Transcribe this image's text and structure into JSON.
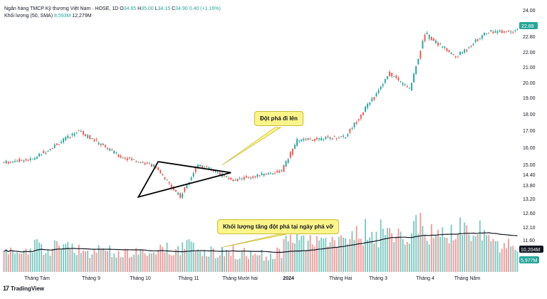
{
  "header": {
    "symbol_title": "Ngân hàng TMCP Kỹ thương Việt Nam · HOSE, 1D",
    "ohlc": {
      "o_label": "O",
      "o_value": "34.65",
      "h_label": "H",
      "h_value": "35.00",
      "l_label": "L",
      "l_value": "34.15",
      "c_label": "C",
      "c_value": "34.90",
      "change": "0.40 (+1.16%)"
    },
    "volume_label": "Khối lượng (50, SMA)",
    "volume_value_a": "8,593M",
    "volume_value_b": "12,279M"
  },
  "annotations": {
    "breakout": "Đột phá đi lên",
    "volume_spike": "Khối lượng tăng đột phá tại ngày phá vỡ"
  },
  "price_axis": {
    "ticks": [
      "24.00",
      "22.80",
      "22.00",
      "21.00",
      "20.00",
      "19.00",
      "18.00",
      "17.00",
      "16.00",
      "15.00",
      "14.40",
      "13.80",
      "13.20",
      "12.60",
      "12.10",
      "11.60"
    ],
    "current_price_label": "22.89",
    "volume_ma_label": "10,204M",
    "volume_label": "5,977M"
  },
  "time_axis": {
    "ticks": [
      "Tháng Tám",
      "Tháng 9",
      "Tháng 10",
      "Tháng 11",
      "Tháng Mười hai",
      "2024",
      "Tháng Hai",
      "Tháng 3",
      "Tháng 4",
      "Tháng Năm"
    ]
  },
  "branding": {
    "logo_text": "TradingView",
    "logo_mark": "17"
  },
  "colors": {
    "up": "#26a69a",
    "down": "#ef5350",
    "vol_up": "#7fcbc2",
    "vol_down": "#f29b9b",
    "ma": "#131722",
    "current_price": "#26a69a",
    "callout_bg": "#fdf58a"
  },
  "chart_data": {
    "type": "candlestick",
    "price_range": [
      12.1,
      24.2
    ],
    "volume_range": [
      0,
      26
    ],
    "volume_scale_labels": {
      "ma": 10.204,
      "last": 5.977
    },
    "segments": [
      {
        "start": 15.05,
        "end": 15.25,
        "n": 14,
        "vol": [
          6,
          9
        ]
      },
      {
        "start": 15.25,
        "end": 16.95,
        "n": 21,
        "vol": [
          6,
          12
        ]
      },
      {
        "start": 16.95,
        "end": 15.45,
        "n": 18,
        "vol": [
          5,
          10
        ]
      },
      {
        "start": 15.45,
        "end": 14.85,
        "n": 16,
        "vol": [
          5,
          9
        ]
      },
      {
        "start": 14.85,
        "end": 13.0,
        "n": 12,
        "vol": [
          6,
          11
        ]
      },
      {
        "start": 13.0,
        "end": 14.95,
        "n": 8,
        "vol": [
          7,
          12
        ]
      },
      {
        "start": 14.95,
        "end": 14.0,
        "n": 16,
        "vol": [
          5,
          10
        ]
      },
      {
        "start": 14.0,
        "end": 14.55,
        "n": 22,
        "vol": [
          4,
          9
        ]
      },
      {
        "start": 14.55,
        "end": 16.35,
        "n": 7,
        "vol": [
          10,
          16
        ]
      },
      {
        "start": 16.35,
        "end": 16.6,
        "n": 22,
        "vol": [
          8,
          14
        ]
      },
      {
        "start": 16.6,
        "end": 20.35,
        "n": 20,
        "vol": [
          9,
          20
        ]
      },
      {
        "start": 20.35,
        "end": 19.4,
        "n": 9,
        "vol": [
          9,
          16
        ]
      },
      {
        "start": 19.4,
        "end": 22.7,
        "n": 7,
        "vol": [
          12,
          22
        ]
      },
      {
        "start": 22.7,
        "end": 21.3,
        "n": 14,
        "vol": [
          10,
          18
        ]
      },
      {
        "start": 21.3,
        "end": 22.8,
        "n": 14,
        "vol": [
          10,
          20
        ]
      },
      {
        "start": 22.8,
        "end": 22.89,
        "n": 14,
        "vol": [
          7,
          14
        ]
      }
    ],
    "triangle": {
      "apex_top": {
        "bar": 70,
        "price": 15.1
      },
      "apex_bottom": {
        "bar": 61,
        "price": 13.0
      },
      "apex_right": {
        "bar": 103,
        "price": 14.45
      }
    },
    "breakout_bar": 99,
    "volume_highlight_bar": 99
  }
}
